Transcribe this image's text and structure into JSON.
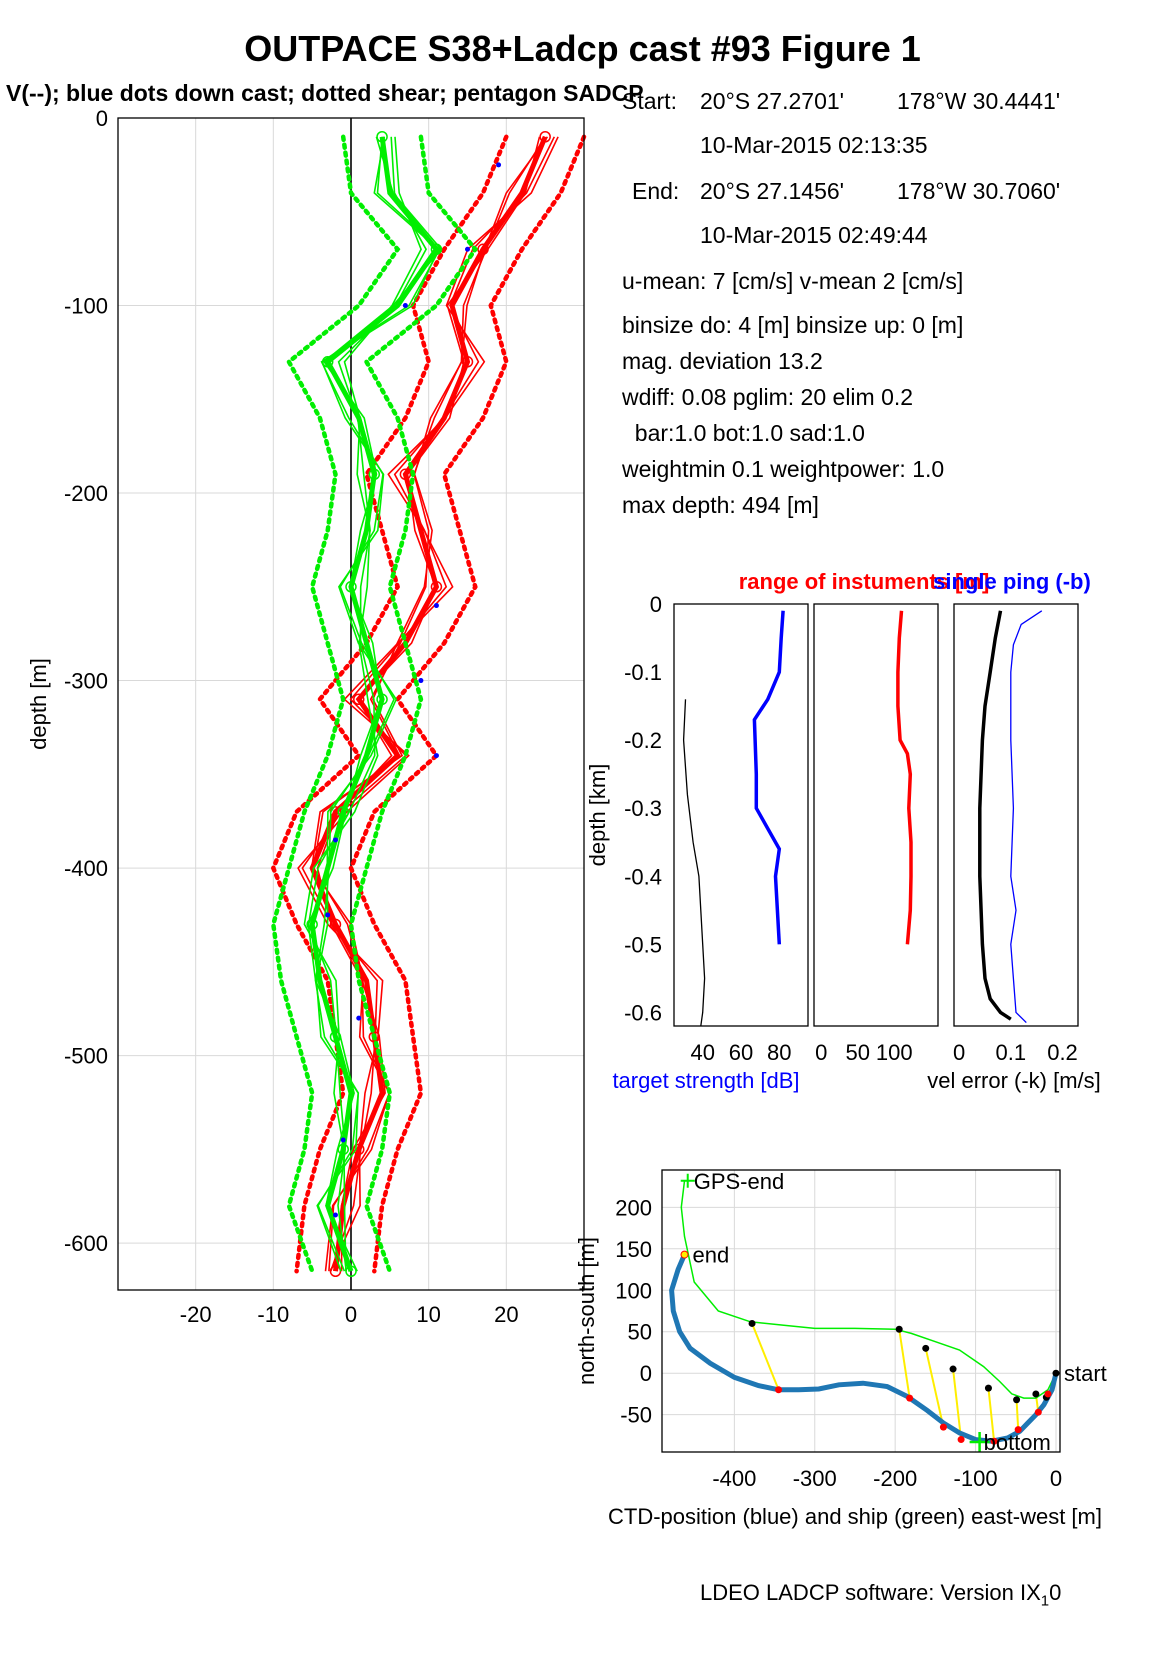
{
  "header": {
    "title": "OUTPACE S38+Ladcp cast #93  Figure 1",
    "subtitle": "V(--); blue dots down cast; dotted shear; pentagon SADCP"
  },
  "info": {
    "start_label": "Start:",
    "start_lat": "20°S 27.2701'",
    "start_lon": "178°W 30.4441'",
    "start_time": "10-Mar-2015 02:13:35",
    "end_label": "End:",
    "end_lat": "20°S 27.1456'",
    "end_lon": "178°W 30.7060'",
    "end_time": "10-Mar-2015 02:49:44",
    "means": "u-mean:   7 [cm/s]    v-mean   2 [cm/s]",
    "binsize": "binsize do: 4 [m]  binsize up:  0 [m]",
    "magdev": "mag. deviation 13.2",
    "wdiff": "wdiff: 0.08  pglim: 20  elim 0.2",
    "bar": "  bar:1.0 bot:1.0 sad:1.0",
    "weight": "weightmin 0.1  weightpower: 1.0",
    "maxdepth": "max depth: 494 [m]"
  },
  "footer": {
    "text": "LDEO LADCP software: Version IX",
    "sub": "1",
    "tail": "0"
  },
  "colors": {
    "red": "#ff0000",
    "green": "#00ee00",
    "blue": "#0000ff",
    "ctd": "#1f77b4",
    "yellow": "#ffee00",
    "grid": "#d9d9d9"
  },
  "chart_data": [
    {
      "type": "line",
      "id": "velocity-profile",
      "ylabel": "depth [m]",
      "xlabel": "",
      "xlim": [
        -30,
        30
      ],
      "ylim": [
        -625,
        0
      ],
      "xticks": [
        -20,
        -10,
        0,
        10,
        20
      ],
      "yticks": [
        0,
        -100,
        -200,
        -300,
        -400,
        -500,
        -600
      ],
      "grid": true,
      "depth": [
        -10,
        -40,
        -70,
        -100,
        -130,
        -160,
        -190,
        -220,
        -250,
        -280,
        -310,
        -340,
        -370,
        -400,
        -430,
        -460,
        -490,
        -520,
        -550,
        -580,
        -615
      ],
      "series": [
        {
          "name": "u",
          "color": "red",
          "values": [
            25,
            22,
            17,
            13,
            15,
            12,
            7,
            9,
            11,
            7,
            1,
            6,
            -2,
            -5,
            -2,
            2,
            3,
            4,
            1,
            -1,
            -2
          ]
        },
        {
          "name": "v",
          "color": "green",
          "values": [
            4,
            5,
            11,
            6,
            -3,
            1,
            3,
            2,
            0,
            2,
            4,
            2,
            -1,
            -3,
            -5,
            -4,
            -2,
            0,
            -1,
            -3,
            0
          ]
        }
      ],
      "shear_offset": 5,
      "downcast_dots": [
        [
          19,
          -25
        ],
        [
          15,
          -70
        ],
        [
          7,
          -100
        ],
        [
          11,
          -260
        ],
        [
          9,
          -300
        ],
        [
          11,
          -340
        ],
        [
          -2,
          -385
        ],
        [
          -3,
          -425
        ],
        [
          1,
          -480
        ],
        [
          -1,
          -545
        ],
        [
          -2,
          -585
        ]
      ]
    },
    {
      "type": "line",
      "id": "target-strength",
      "title": "range of instuments [m]",
      "title2": "single ping (-b)",
      "ylabel": "depth [km]",
      "xlabel": "target strength [dB]",
      "xlim": [
        25,
        95
      ],
      "ylim": [
        -0.62,
        0
      ],
      "xticks": [
        40,
        60,
        80
      ],
      "yticks": [
        0,
        -0.1,
        -0.2,
        -0.3,
        -0.4,
        -0.5,
        -0.6
      ],
      "series": [
        {
          "name": "blue",
          "color": "blue",
          "depth": [
            -0.01,
            -0.05,
            -0.1,
            -0.14,
            -0.17,
            -0.25,
            -0.3,
            -0.33,
            -0.36,
            -0.4,
            -0.45,
            -0.5
          ],
          "values": [
            82,
            81,
            80,
            74,
            67,
            68,
            68,
            74,
            80,
            78,
            79,
            80
          ]
        },
        {
          "name": "black",
          "color": "black",
          "depth": [
            -0.14,
            -0.2,
            -0.28,
            -0.35,
            -0.4,
            -0.45,
            -0.5,
            -0.55,
            -0.6,
            -0.62
          ],
          "values": [
            31,
            30,
            32,
            35,
            38,
            39,
            40,
            41,
            40,
            39
          ]
        }
      ]
    },
    {
      "type": "line",
      "id": "range-instruments",
      "xlabel": "",
      "xlim": [
        -10,
        160
      ],
      "ylim": [
        -0.62,
        0
      ],
      "xticks": [
        0,
        50,
        100
      ],
      "series": [
        {
          "name": "range",
          "color": "red",
          "depth": [
            -0.01,
            -0.05,
            -0.1,
            -0.15,
            -0.2,
            -0.22,
            -0.25,
            -0.3,
            -0.35,
            -0.4,
            -0.45,
            -0.5
          ],
          "values": [
            110,
            107,
            105,
            105,
            108,
            118,
            122,
            120,
            123,
            123,
            122,
            118
          ]
        }
      ]
    },
    {
      "type": "line",
      "id": "vel-error",
      "xlabel": "vel error (-k) [m/s]",
      "xlim": [
        -0.01,
        0.23
      ],
      "ylim": [
        -0.62,
        0
      ],
      "xticks": [
        0,
        0.1,
        0.2
      ],
      "series": [
        {
          "name": "-k",
          "color": "black",
          "depth": [
            -0.01,
            -0.05,
            -0.1,
            -0.15,
            -0.2,
            -0.3,
            -0.4,
            -0.5,
            -0.55,
            -0.58,
            -0.6,
            -0.61
          ],
          "values": [
            0.08,
            0.07,
            0.06,
            0.05,
            0.045,
            0.04,
            0.04,
            0.045,
            0.05,
            0.06,
            0.08,
            0.1
          ]
        },
        {
          "name": "-b",
          "color": "blue",
          "depth": [
            -0.01,
            -0.03,
            -0.06,
            -0.1,
            -0.2,
            -0.3,
            -0.4,
            -0.45,
            -0.5,
            -0.55,
            -0.6,
            -0.615
          ],
          "values": [
            0.16,
            0.12,
            0.105,
            0.1,
            0.1,
            0.105,
            0.1,
            0.11,
            0.1,
            0.105,
            0.11,
            0.13
          ]
        }
      ]
    },
    {
      "type": "line",
      "id": "position",
      "ylabel": "north-south [m]",
      "xlabel": "CTD-position (blue) and ship (green) east-west [m]",
      "xlim": [
        -490,
        5
      ],
      "ylim": [
        -95,
        245
      ],
      "xticks": [
        -400,
        -300,
        -200,
        -100,
        0
      ],
      "yticks": [
        200,
        150,
        100,
        50,
        0,
        -50
      ],
      "grid": true,
      "ctd": {
        "x": [
          -462,
          -470,
          -478,
          -476,
          -468,
          -455,
          -430,
          -400,
          -370,
          -345,
          -320,
          -295,
          -270,
          -240,
          -210,
          -185,
          -160,
          -140,
          -120,
          -100,
          -80,
          -60,
          -45,
          -35,
          -25,
          -15,
          -5,
          0
        ],
        "y": [
          143,
          125,
          100,
          75,
          50,
          30,
          12,
          -5,
          -15,
          -20,
          -20,
          -19,
          -14,
          -12,
          -16,
          -28,
          -45,
          -60,
          -72,
          -80,
          -82,
          -78,
          -70,
          -60,
          -50,
          -38,
          -20,
          0
        ]
      },
      "ship": {
        "x": [
          -462,
          -466,
          -462,
          -450,
          -420,
          -380,
          -340,
          -300,
          -250,
          -200,
          -180,
          -150,
          -120,
          -90,
          -70,
          -55,
          -40,
          -25,
          -10,
          0
        ],
        "y": [
          232,
          200,
          165,
          110,
          75,
          62,
          58,
          54,
          54,
          53,
          48,
          38,
          28,
          8,
          -10,
          -25,
          -30,
          -30,
          -20,
          0
        ]
      },
      "pairs": [
        [
          -378,
          60,
          -345,
          -20
        ],
        [
          -195,
          53,
          -182,
          -30
        ],
        [
          -162,
          30,
          -140,
          -65
        ],
        [
          -128,
          5,
          -118,
          -80
        ],
        [
          -84,
          -18,
          -77,
          -82
        ],
        [
          -49,
          -32,
          -47,
          -68
        ],
        [
          -25,
          -25,
          -22,
          -47
        ],
        [
          -12,
          -29,
          -10,
          -25
        ]
      ],
      "labels": {
        "gps_end": "GPS-end",
        "end": "end",
        "start": "start",
        "bottom": "bottom"
      },
      "gps_end": [
        -458,
        232
      ],
      "end": [
        -462,
        143
      ],
      "start": [
        0,
        0
      ],
      "bottom": [
        -95,
        -83
      ]
    }
  ]
}
